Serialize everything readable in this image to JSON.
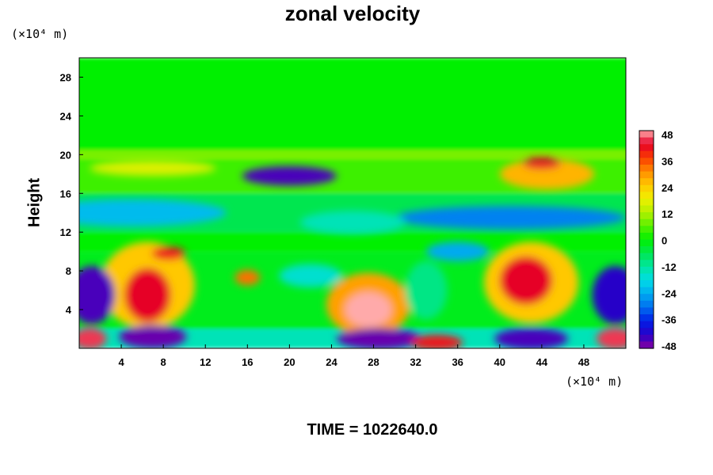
{
  "chart_data": {
    "type": "heatmap",
    "title": "zonal velocity",
    "xlabel": "",
    "ylabel": "Height",
    "x_unit": "(×10⁴ m)",
    "y_unit": "(×10⁴ m)",
    "xlim": [
      0,
      52
    ],
    "ylim": [
      0,
      30
    ],
    "x_ticks": [
      4,
      8,
      12,
      16,
      20,
      24,
      28,
      32,
      36,
      40,
      44,
      48
    ],
    "y_ticks": [
      4,
      8,
      12,
      16,
      20,
      24,
      28
    ],
    "colorbar": {
      "levels": [
        48,
        36,
        24,
        12,
        0,
        -12,
        -24,
        -36,
        -48
      ],
      "min": -48,
      "max": 48
    },
    "bands": [
      {
        "y": [
          20,
          30
        ],
        "value": 0
      },
      {
        "y": [
          19.5,
          20.5
        ],
        "value": 8
      },
      {
        "y": [
          16,
          19.5
        ],
        "value": 4
      },
      {
        "y": [
          12,
          16
        ],
        "value": -6
      },
      {
        "y": [
          10,
          12
        ],
        "value": 0
      },
      {
        "y": [
          2,
          10
        ],
        "value": -2
      },
      {
        "y": [
          0,
          2
        ],
        "value": -14
      }
    ],
    "features": [
      {
        "x": 20,
        "y": 17.8,
        "rx": 4.5,
        "ry": 1.0,
        "value": -44
      },
      {
        "x": 44.5,
        "y": 18.0,
        "rx": 4.5,
        "ry": 1.6,
        "value": 26
      },
      {
        "x": 44,
        "y": 19.1,
        "rx": 1.8,
        "ry": 0.6,
        "value": 42
      },
      {
        "x": 7,
        "y": 18.6,
        "rx": 6,
        "ry": 0.8,
        "value": 16
      },
      {
        "x": 5,
        "y": 14,
        "rx": 9,
        "ry": 1.4,
        "value": -22
      },
      {
        "x": 41,
        "y": 13.5,
        "rx": 11,
        "ry": 1.2,
        "value": -28
      },
      {
        "x": 26,
        "y": 13,
        "rx": 5,
        "ry": 1.2,
        "value": -14
      },
      {
        "x": 6.5,
        "y": 6.5,
        "rx": 4.5,
        "ry": 4.5,
        "value": 24
      },
      {
        "x": 6.5,
        "y": 5.5,
        "rx": 2.2,
        "ry": 2.8,
        "value": 42
      },
      {
        "x": 8.5,
        "y": 9.8,
        "rx": 1.6,
        "ry": 0.7,
        "value": 40
      },
      {
        "x": 27.5,
        "y": 4.5,
        "rx": 4,
        "ry": 3.3,
        "value": 28
      },
      {
        "x": 27.5,
        "y": 4.0,
        "rx": 2.2,
        "ry": 1.8,
        "value": 48
      },
      {
        "x": 43,
        "y": 6.8,
        "rx": 4.5,
        "ry": 4.2,
        "value": 24
      },
      {
        "x": 42.5,
        "y": 7.0,
        "rx": 2.5,
        "ry": 2.5,
        "value": 42
      },
      {
        "x": 16,
        "y": 7.3,
        "rx": 1.2,
        "ry": 0.8,
        "value": 32
      },
      {
        "x": 1.2,
        "y": 5.5,
        "rx": 2.2,
        "ry": 3.0,
        "value": -44
      },
      {
        "x": 51,
        "y": 5.5,
        "rx": 2.2,
        "ry": 3.0,
        "value": -42
      },
      {
        "x": 7,
        "y": 1.2,
        "rx": 3.2,
        "ry": 1.2,
        "value": -46
      },
      {
        "x": 28.5,
        "y": 1.0,
        "rx": 4,
        "ry": 1.1,
        "value": -46
      },
      {
        "x": 43,
        "y": 1.0,
        "rx": 3.5,
        "ry": 1.1,
        "value": -44
      },
      {
        "x": 1,
        "y": 1.0,
        "rx": 1.6,
        "ry": 1.1,
        "value": 44
      },
      {
        "x": 34,
        "y": 0.6,
        "rx": 2.5,
        "ry": 0.8,
        "value": 40
      },
      {
        "x": 51,
        "y": 1.0,
        "rx": 1.8,
        "ry": 1.1,
        "value": 44
      },
      {
        "x": 22,
        "y": 7.5,
        "rx": 3,
        "ry": 1.2,
        "value": -16
      },
      {
        "x": 36,
        "y": 10,
        "rx": 3,
        "ry": 1,
        "value": -24
      },
      {
        "x": 33,
        "y": 6,
        "rx": 2,
        "ry": 3,
        "value": -10
      }
    ]
  },
  "footer": {
    "time_label": "TIME = 1022640.0"
  }
}
